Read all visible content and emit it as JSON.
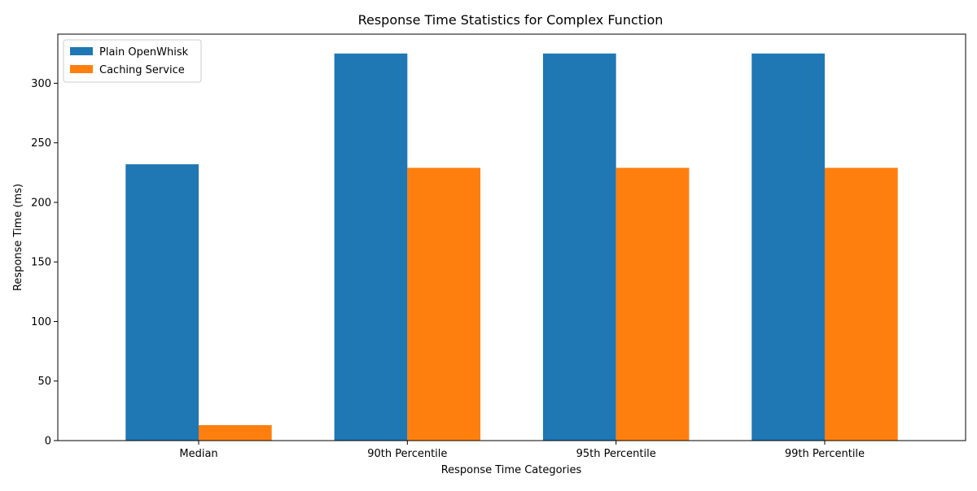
{
  "chart_data": {
    "type": "bar",
    "title": "Response Time Statistics for Complex Function",
    "xlabel": "Response Time Categories",
    "ylabel": "Response Time (ms)",
    "categories": [
      "Median",
      "90th Percentile",
      "95th Percentile",
      "99th Percentile"
    ],
    "series": [
      {
        "name": "Plain OpenWhisk",
        "color": "#1f77b4",
        "values": [
          232,
          325,
          325,
          325
        ]
      },
      {
        "name": "Caching Service",
        "color": "#ff7f0e",
        "values": [
          13,
          229,
          229,
          229
        ]
      }
    ],
    "ylim": [
      0,
      341.25
    ],
    "yticks": [
      0,
      50,
      100,
      150,
      200,
      250,
      300
    ],
    "grid": false,
    "legend_position": "top-left"
  }
}
